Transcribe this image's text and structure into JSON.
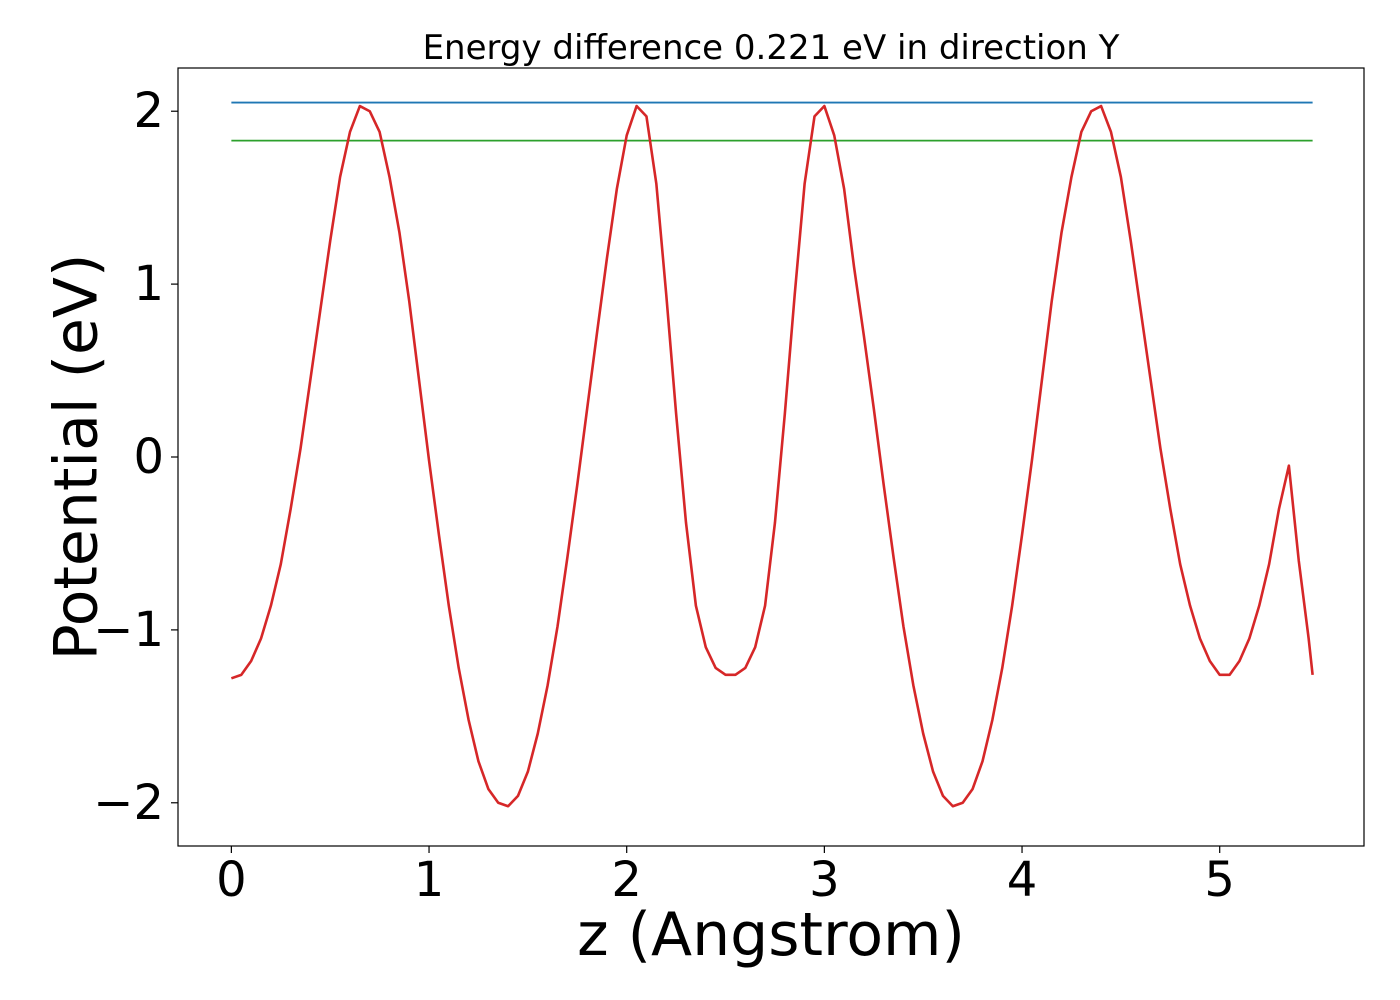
{
  "chart_data": {
    "type": "line",
    "title": "Energy difference 0.221 eV in direction Y",
    "xlabel": "z (Angstrom)",
    "ylabel": "Potential (eV)",
    "xlim": [
      -0.27,
      5.73
    ],
    "ylim": [
      -2.25,
      2.25
    ],
    "x_ticks": [
      0,
      1,
      2,
      3,
      4,
      5
    ],
    "y_ticks": [
      -2,
      -1,
      0,
      1,
      2
    ],
    "x_tick_labels": [
      "0",
      "1",
      "2",
      "3",
      "4",
      "5"
    ],
    "y_tick_labels": [
      "−2",
      "−1",
      "0",
      "1",
      "2"
    ],
    "grid": false,
    "series": [
      {
        "color": "#1f77b4",
        "x": [
          0,
          5.47
        ],
        "y": [
          2.05,
          2.05
        ]
      },
      {
        "color": "#2ca02c",
        "x": [
          0,
          5.47
        ],
        "y": [
          1.83,
          1.83
        ]
      },
      {
        "color": "#d62728",
        "x": [
          0.0,
          0.05,
          0.1,
          0.15,
          0.2,
          0.25,
          0.3,
          0.35,
          0.4,
          0.45,
          0.5,
          0.55,
          0.6,
          0.65,
          0.7,
          0.75,
          0.8,
          0.85,
          0.9,
          0.95,
          1.0,
          1.05,
          1.1,
          1.15,
          1.2,
          1.25,
          1.3,
          1.35,
          1.4,
          1.45,
          1.5,
          1.55,
          1.6,
          1.65,
          1.7,
          1.75,
          1.8,
          1.85,
          1.9,
          1.95,
          2.0,
          2.05,
          2.1,
          2.15,
          2.2,
          2.25,
          2.3,
          2.35,
          2.4,
          2.45,
          2.5,
          2.55,
          2.6,
          2.65,
          2.7,
          2.75,
          2.8,
          2.85,
          2.9,
          2.95,
          3.0,
          3.05,
          3.1,
          3.15,
          3.2,
          3.25,
          3.3,
          3.35,
          3.4,
          3.45,
          3.5,
          3.55,
          3.6,
          3.65,
          3.7,
          3.75,
          3.8,
          3.85,
          3.9,
          3.95,
          4.0,
          4.05,
          4.1,
          4.15,
          4.2,
          4.25,
          4.3,
          4.35,
          4.4,
          4.45,
          4.5,
          4.55,
          4.6,
          4.65,
          4.7,
          4.75,
          4.8,
          4.85,
          4.9,
          4.95,
          5.0,
          5.05,
          5.1,
          5.15,
          5.2,
          5.25,
          5.3,
          5.35,
          5.4,
          5.45,
          5.47
        ],
        "y": [
          -1.28,
          -1.26,
          -1.18,
          -1.05,
          -0.86,
          -0.62,
          -0.3,
          0.05,
          0.45,
          0.85,
          1.25,
          1.62,
          1.88,
          2.03,
          2.0,
          1.88,
          1.62,
          1.3,
          0.9,
          0.44,
          -0.02,
          -0.45,
          -0.86,
          -1.22,
          -1.52,
          -1.76,
          -1.92,
          -2.0,
          -2.02,
          -1.96,
          -1.82,
          -1.6,
          -1.32,
          -0.98,
          -0.58,
          -0.16,
          0.28,
          0.72,
          1.15,
          1.55,
          1.86,
          2.03,
          1.97,
          1.58,
          0.94,
          0.25,
          -0.38,
          -0.86,
          -1.1,
          -1.22,
          -1.26,
          -1.26,
          -1.22,
          -1.1,
          -0.86,
          -0.38,
          0.25,
          0.94,
          1.58,
          1.97,
          2.03,
          1.86,
          1.55,
          1.1,
          0.7,
          0.28,
          -0.16,
          -0.58,
          -0.98,
          -1.32,
          -1.6,
          -1.82,
          -1.96,
          -2.02,
          -2.0,
          -1.92,
          -1.76,
          -1.52,
          -1.22,
          -0.86,
          -0.45,
          -0.02,
          0.44,
          0.9,
          1.3,
          1.62,
          1.88,
          2.0,
          2.03,
          1.88,
          1.62,
          1.25,
          0.85,
          0.45,
          0.05,
          -0.3,
          -0.62,
          -0.86,
          -1.05,
          -1.18,
          -1.26,
          -1.26,
          -1.18,
          -1.05,
          -0.86,
          -0.62,
          -0.3,
          -0.05,
          -0.6,
          -1.05,
          -1.26
        ]
      }
    ]
  }
}
